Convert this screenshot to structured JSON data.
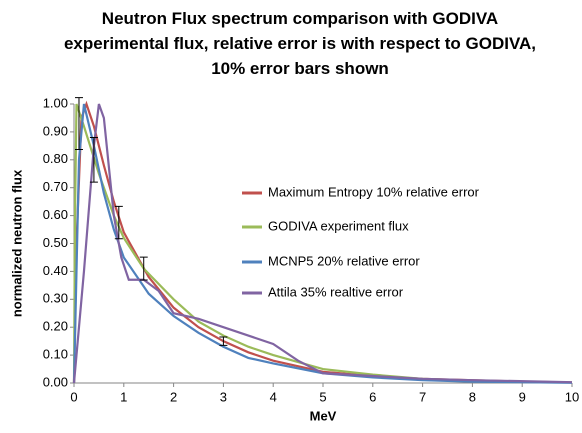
{
  "chart_data": {
    "type": "line",
    "title": "Neutron Flux spectrum comparison with GODIVA experimental flux, relative error is with respect to GODIVA, 10% error bars shown",
    "xlabel": "MeV",
    "ylabel": "normalized neutron flux",
    "xlim": [
      0,
      10
    ],
    "xticks": [
      0,
      1,
      2,
      3,
      4,
      5,
      6,
      7,
      8,
      9,
      10
    ],
    "ylim": [
      0,
      1
    ],
    "yticks": [
      {
        "value": 0,
        "label": "0.00"
      },
      {
        "value": 0.1,
        "label": "0.10"
      },
      {
        "value": 0.2,
        "label": "0.20"
      },
      {
        "value": 0.3,
        "label": "0.30"
      },
      {
        "value": 0.4,
        "label": "0.40"
      },
      {
        "value": 0.5,
        "label": "0.50"
      },
      {
        "value": 0.6,
        "label": "0.60"
      },
      {
        "value": 0.7,
        "label": "0.70"
      },
      {
        "value": 0.8,
        "label": "0.80"
      },
      {
        "value": 0.9,
        "label": "0.90"
      },
      {
        "value": 1,
        "label": "1.00"
      }
    ],
    "series": [
      {
        "name": "Maximum Entropy 10% relative error",
        "color": "#c0504d",
        "x": [
          0,
          0.05,
          0.15,
          0.25,
          0.4,
          0.6,
          0.8,
          1.0,
          1.5,
          2,
          2.5,
          3,
          3.5,
          4,
          5,
          6,
          7,
          8,
          9,
          10
        ],
        "values": [
          0,
          0.5,
          0.95,
          1.0,
          0.92,
          0.78,
          0.65,
          0.54,
          0.38,
          0.27,
          0.2,
          0.15,
          0.11,
          0.08,
          0.04,
          0.025,
          0.015,
          0.01,
          0.005,
          0.002
        ]
      },
      {
        "name": "GODIVA experiment flux",
        "color": "#9bbb59",
        "x": [
          0,
          0.02,
          0.05,
          0.2,
          0.5,
          0.8,
          1.0,
          1.4,
          2,
          2.5,
          3,
          3.5,
          4,
          5,
          6,
          7,
          8,
          10
        ],
        "values": [
          0,
          0.6,
          1.0,
          0.92,
          0.75,
          0.6,
          0.52,
          0.41,
          0.3,
          0.22,
          0.17,
          0.13,
          0.1,
          0.05,
          0.03,
          0.015,
          0.008,
          0.002
        ]
      },
      {
        "name": "MCNP5 20% relative error",
        "color": "#4f81bd",
        "x": [
          0,
          0.1,
          0.2,
          0.4,
          0.6,
          0.8,
          1.0,
          1.5,
          2,
          2.5,
          3,
          3.5,
          4,
          5,
          6,
          7,
          8,
          10
        ],
        "values": [
          0,
          0.8,
          1.0,
          0.85,
          0.68,
          0.55,
          0.45,
          0.32,
          0.24,
          0.18,
          0.13,
          0.09,
          0.07,
          0.035,
          0.02,
          0.01,
          0.005,
          0.001
        ]
      },
      {
        "name": "Attila 35% realtive error",
        "color": "#8064a2",
        "x": [
          0,
          0.2,
          0.4,
          0.5,
          0.6,
          0.8,
          0.95,
          1.1,
          1.4,
          1.7,
          2,
          2.5,
          3,
          3.5,
          4,
          4.5,
          5,
          6,
          7,
          8,
          10
        ],
        "values": [
          0,
          0.4,
          0.85,
          1.0,
          0.95,
          0.6,
          0.45,
          0.37,
          0.37,
          0.33,
          0.25,
          0.23,
          0.2,
          0.17,
          0.14,
          0.08,
          0.035,
          0.025,
          0.015,
          0.01,
          0.003
        ]
      }
    ],
    "error_bars": {
      "x": [
        0.1,
        0.4,
        0.9,
        1.4,
        3.0
      ],
      "values": [
        0.93,
        0.8,
        0.575,
        0.41,
        0.15
      ],
      "errors": [
        0.093,
        0.08,
        0.058,
        0.041,
        0.015
      ],
      "color": "#000000"
    },
    "grid": false
  }
}
